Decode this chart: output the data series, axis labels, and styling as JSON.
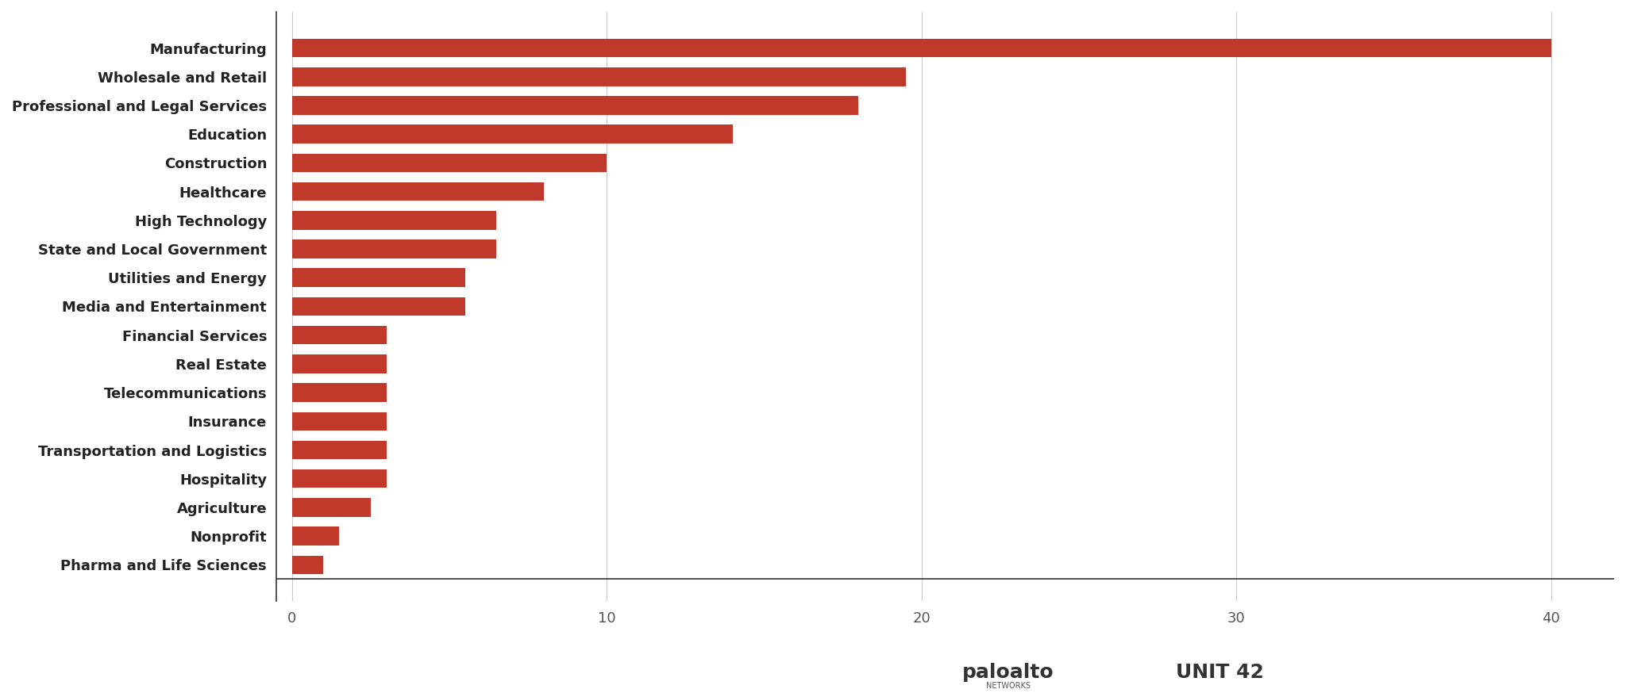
{
  "categories": [
    "Pharma and Life Sciences",
    "Nonprofit",
    "Agriculture",
    "Hospitality",
    "Transportation and Logistics",
    "Insurance",
    "Telecommunications",
    "Real Estate",
    "Financial Services",
    "Media and Entertainment",
    "Utilities and Energy",
    "State and Local Government",
    "High Technology",
    "Healthcare",
    "Construction",
    "Education",
    "Professional and Legal Services",
    "Wholesale and Retail",
    "Manufacturing"
  ],
  "values": [
    1,
    1.5,
    2.5,
    3,
    3,
    3,
    3,
    3,
    3,
    5.5,
    5.5,
    6.5,
    6.5,
    8,
    10,
    14,
    18,
    19.5,
    40
  ],
  "bar_color": "#c0392b",
  "background_color": "#ffffff",
  "xlim": [
    -0.5,
    42
  ],
  "xticks": [
    0,
    10,
    20,
    30,
    40
  ],
  "grid_color": "#cccccc",
  "label_fontsize": 13,
  "tick_fontsize": 13
}
